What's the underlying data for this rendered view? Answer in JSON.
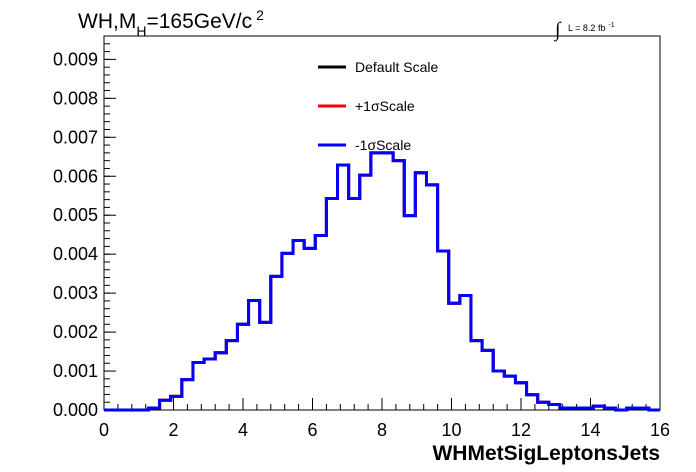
{
  "chart_data": {
    "type": "histogram",
    "title_prefix": "WH,M",
    "title_sub": "H",
    "title_suffix": "=165GeV/c",
    "title_sup": "2",
    "lumi_prefix": "L = 8.2 fb",
    "lumi_sup": "-1",
    "xlabel": "WHMetSigLeptonsJets",
    "ylabel": "",
    "xlim": [
      0,
      16
    ],
    "ylim": [
      0,
      0.0096
    ],
    "x_ticks": [
      "0",
      "2",
      "4",
      "6",
      "8",
      "10",
      "12",
      "14",
      "16"
    ],
    "y_ticks": [
      "0.000",
      "0.001",
      "0.002",
      "0.003",
      "0.004",
      "0.005",
      "0.006",
      "0.007",
      "0.008",
      "0.009"
    ],
    "bin_edges": [
      0,
      0.32,
      0.64,
      0.96,
      1.28,
      1.6,
      1.92,
      2.24,
      2.56,
      2.88,
      3.2,
      3.52,
      3.84,
      4.16,
      4.48,
      4.8,
      5.12,
      5.44,
      5.76,
      6.08,
      6.4,
      6.72,
      7.04,
      7.36,
      7.68,
      8.0,
      8.32,
      8.64,
      8.96,
      9.28,
      9.6,
      9.92,
      10.24,
      10.56,
      10.88,
      11.2,
      11.52,
      11.84,
      12.16,
      12.48,
      12.8,
      13.12,
      13.44,
      13.76,
      14.08,
      14.4,
      14.72,
      15.04,
      15.36,
      15.68,
      16.0
    ],
    "series": [
      {
        "name": "Default Scale",
        "color": "#000000",
        "values": [
          0.0,
          0.0,
          0.0,
          0.0,
          5e-05,
          0.00025,
          0.00035,
          0.00078,
          0.00122,
          0.00131,
          0.00147,
          0.00178,
          0.0022,
          0.00281,
          0.00225,
          0.00343,
          0.00402,
          0.00435,
          0.00415,
          0.00448,
          0.00543,
          0.00629,
          0.00543,
          0.00603,
          0.0066,
          0.0066,
          0.0064,
          0.00499,
          0.00609,
          0.00578,
          0.00408,
          0.00274,
          0.00294,
          0.00178,
          0.00153,
          0.001,
          0.00087,
          0.0007,
          0.00039,
          0.0002,
          0.00014,
          5e-05,
          5e-05,
          5e-05,
          0.0001,
          5e-05,
          0.0,
          5e-05,
          5e-05,
          0.0
        ]
      },
      {
        "name": "+1σScale",
        "color": "#ff0000",
        "values": [
          0.0,
          0.0,
          0.0,
          0.0,
          5e-05,
          0.00025,
          0.00035,
          0.00078,
          0.00122,
          0.00131,
          0.00147,
          0.00178,
          0.0022,
          0.00281,
          0.00225,
          0.00343,
          0.00402,
          0.00435,
          0.00415,
          0.00448,
          0.00543,
          0.00629,
          0.00543,
          0.00603,
          0.0066,
          0.0066,
          0.0064,
          0.00499,
          0.00609,
          0.00578,
          0.00408,
          0.00274,
          0.00294,
          0.00178,
          0.00153,
          0.001,
          0.00087,
          0.0007,
          0.00039,
          0.0002,
          0.00014,
          5e-05,
          5e-05,
          5e-05,
          0.0001,
          5e-05,
          0.0,
          5e-05,
          5e-05,
          0.0
        ]
      },
      {
        "name": "-1σScale",
        "color": "#0000ff",
        "values": [
          0.0,
          0.0,
          0.0,
          0.0,
          5e-05,
          0.00025,
          0.00035,
          0.00078,
          0.00122,
          0.00131,
          0.00147,
          0.00178,
          0.0022,
          0.00281,
          0.00225,
          0.00343,
          0.00402,
          0.00435,
          0.00415,
          0.00448,
          0.00543,
          0.00629,
          0.00543,
          0.00603,
          0.0066,
          0.0066,
          0.0064,
          0.00499,
          0.00609,
          0.00578,
          0.00408,
          0.00274,
          0.00294,
          0.00178,
          0.00153,
          0.001,
          0.00087,
          0.0007,
          0.00039,
          0.0002,
          0.00014,
          5e-05,
          5e-05,
          5e-05,
          0.0001,
          5e-05,
          0.0,
          5e-05,
          5e-05,
          0.0
        ]
      }
    ],
    "legend_position": "top-center",
    "grid": false
  }
}
